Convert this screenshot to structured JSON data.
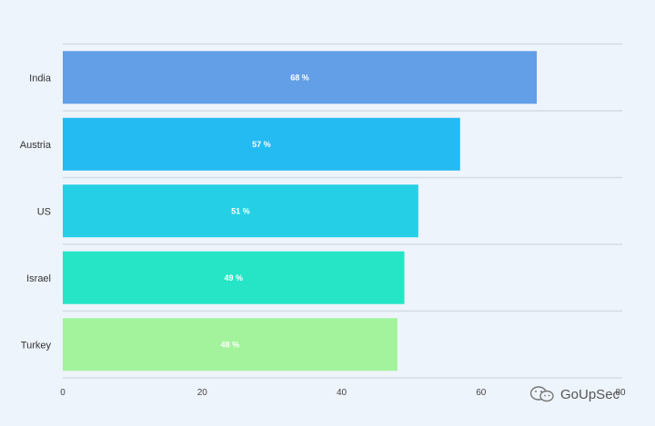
{
  "chart_data": {
    "type": "bar",
    "orientation": "horizontal",
    "categories": [
      "India",
      "Austria",
      "US",
      "Israel",
      "Turkey"
    ],
    "values": [
      68,
      57,
      51,
      49,
      48
    ],
    "value_labels": [
      "68 %",
      "57 %",
      "51 %",
      "49 %",
      "48 %"
    ],
    "colors": [
      "#629fe6",
      "#24baf2",
      "#25d0e6",
      "#25e5c6",
      "#a2f39c"
    ],
    "xlim": [
      0,
      80
    ],
    "xticks": [
      0,
      20,
      40,
      60,
      80
    ],
    "title": "",
    "xlabel": "",
    "ylabel": "",
    "grid": "horizontal separators"
  },
  "watermark": {
    "text": "GoUpSec",
    "icon": "wechat-icon"
  }
}
